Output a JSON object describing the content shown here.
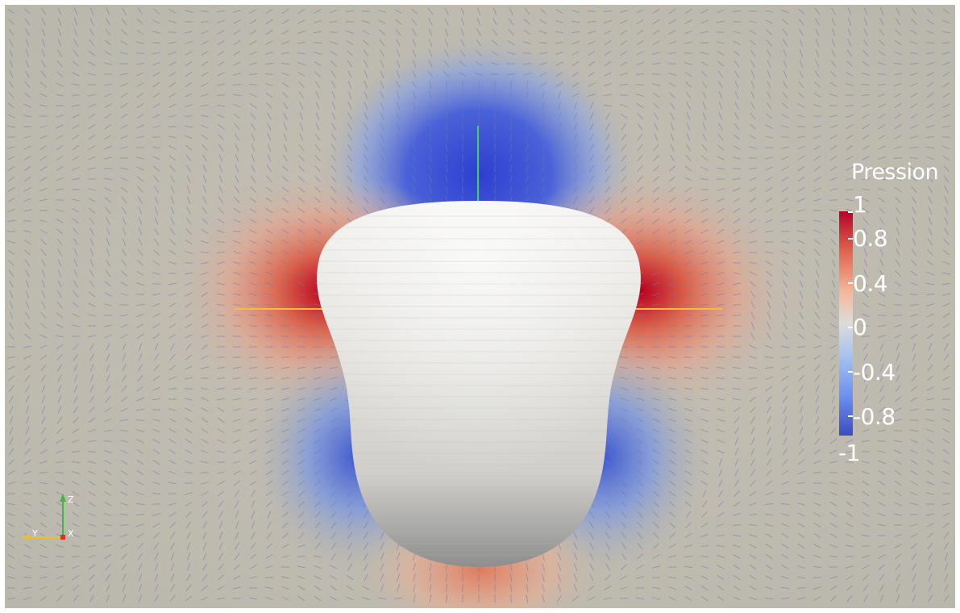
{
  "legend": {
    "title": "Pression",
    "ticks": [
      "1",
      "0.8",
      "0.4",
      "0",
      "-0.4",
      "-0.8",
      "-1"
    ]
  },
  "axes": {
    "y": "Y",
    "z": "Z",
    "x": "X"
  },
  "colors": {
    "background": "#b8b6ab",
    "positive": "#b40426",
    "negative": "#3b4cc0",
    "body": "#e8e6e2",
    "z_axis": "#3fb83f",
    "y_axis": "#f0c020",
    "x_axis": "#e03020"
  }
}
